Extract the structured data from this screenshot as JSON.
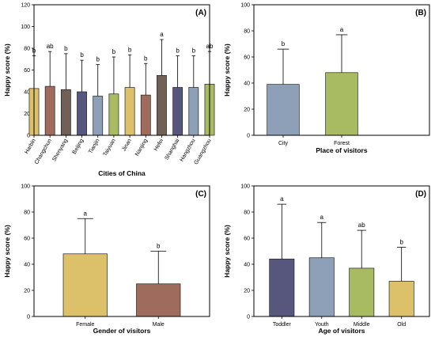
{
  "chart_data": [
    {
      "type": "bar",
      "panel_label": "(A)",
      "ylabel": "Happy score (%)",
      "xlabel": "Cities of China",
      "ylim": [
        0,
        120
      ],
      "yticks": [
        0,
        20,
        40,
        60,
        80,
        100,
        120
      ],
      "categories": [
        "Harbin",
        "Changchun",
        "Shenyang",
        "Beijing",
        "Tianjin",
        "Taiyuan",
        "Jinan",
        "Nanjing",
        "Hefei",
        "Shanghai",
        "Hangzhou",
        "Guangzhou"
      ],
      "values": [
        43,
        45,
        42,
        40,
        36,
        38,
        44,
        37,
        55,
        44,
        44,
        47
      ],
      "error_upper": [
        73,
        77,
        75,
        69,
        65,
        72,
        74,
        66,
        88,
        73,
        73,
        77
      ],
      "significance": [
        "b",
        "ab",
        "b",
        "b",
        "b",
        "b",
        "b",
        "b",
        "a",
        "b",
        "b",
        "ab"
      ],
      "colors": [
        "#dcc06a",
        "#9e6b5c",
        "#706055",
        "#57567c",
        "#8ea0b8",
        "#a9bb62",
        "#dcc06a",
        "#9e6b5c",
        "#706055",
        "#57567c",
        "#8ea0b8",
        "#a9bb62"
      ],
      "rotate_ticks": true
    },
    {
      "type": "bar",
      "panel_label": "(B)",
      "ylabel": "Happy score (%)",
      "xlabel": "Place of visitors",
      "ylim": [
        0,
        100
      ],
      "yticks": [
        0,
        20,
        40,
        60,
        80,
        100
      ],
      "categories": [
        "City",
        "Forest"
      ],
      "values": [
        39,
        48
      ],
      "error_upper": [
        66,
        77
      ],
      "significance": [
        "b",
        "a"
      ],
      "colors": [
        "#8ea0b8",
        "#a9bb62"
      ],
      "rotate_ticks": false
    },
    {
      "type": "bar",
      "panel_label": "(C)",
      "ylabel": "Happy score (%)",
      "xlabel": "Gender of visitors",
      "ylim": [
        0,
        100
      ],
      "yticks": [
        0,
        20,
        40,
        60,
        80,
        100
      ],
      "categories": [
        "Female",
        "Male"
      ],
      "values": [
        48,
        25
      ],
      "error_upper": [
        75,
        50
      ],
      "significance": [
        "a",
        "b"
      ],
      "colors": [
        "#dcc06a",
        "#9e6b5c"
      ],
      "rotate_ticks": false
    },
    {
      "type": "bar",
      "panel_label": "(D)",
      "ylabel": "Happy score (%)",
      "xlabel": "Age of visitors",
      "ylim": [
        0,
        100
      ],
      "yticks": [
        0,
        20,
        40,
        60,
        80,
        100
      ],
      "categories": [
        "Toddler",
        "Youth",
        "Middle",
        "Old"
      ],
      "values": [
        44,
        45,
        37,
        27
      ],
      "error_upper": [
        86,
        72,
        66,
        53
      ],
      "significance": [
        "a",
        "a",
        "ab",
        "b"
      ],
      "colors": [
        "#57567c",
        "#8ea0b8",
        "#a9bb62",
        "#dcc06a"
      ],
      "rotate_ticks": false
    }
  ]
}
